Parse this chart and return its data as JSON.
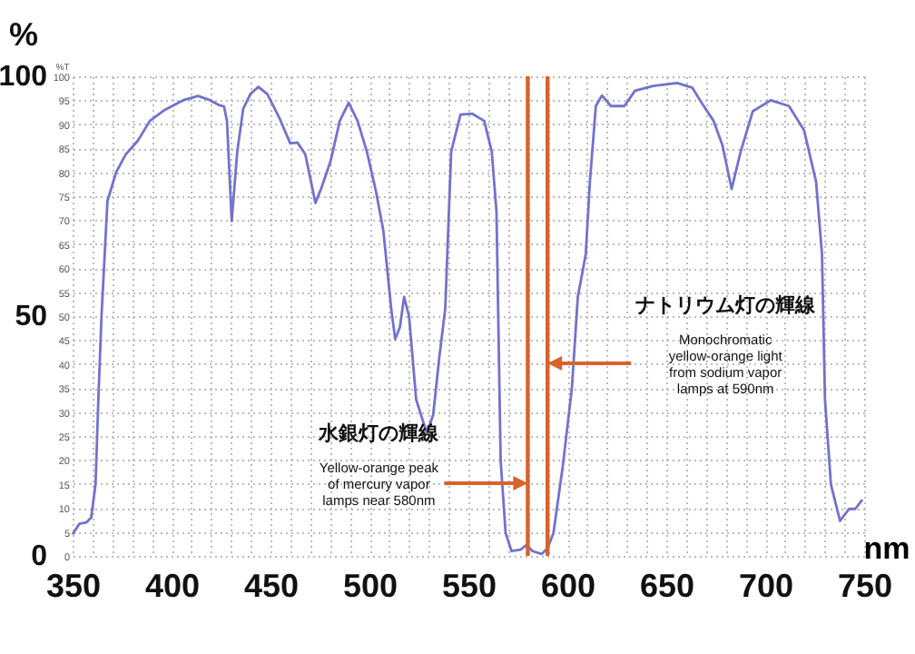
{
  "chart_data": {
    "type": "line",
    "xlabel": "nm",
    "ylabel": "%T",
    "y2label": "%",
    "xlim": [
      350,
      750
    ],
    "ylim": [
      0,
      100
    ],
    "y2lim": [
      0,
      100
    ],
    "xticks": [
      350,
      {
        "value": 360,
        "label": null
      },
      {
        "value": 370,
        "label": null
      },
      {
        "value": 380,
        "label": null
      },
      {
        "value": 390,
        "label": null
      },
      400,
      {
        "value": 410,
        "label": null
      },
      {
        "value": 420,
        "label": null
      },
      {
        "value": 430,
        "label": null
      },
      {
        "value": 440,
        "label": null
      },
      450,
      {
        "value": 460,
        "label": null
      },
      {
        "value": 470,
        "label": null
      },
      {
        "value": 480,
        "label": null
      },
      {
        "value": 490,
        "label": null
      },
      500,
      {
        "value": 510,
        "label": null
      },
      {
        "value": 520,
        "label": null
      },
      {
        "value": 530,
        "label": null
      },
      {
        "value": 540,
        "label": null
      },
      550,
      {
        "value": 560,
        "label": null
      },
      {
        "value": 570,
        "label": null
      },
      {
        "value": 580,
        "label": null
      },
      {
        "value": 590,
        "label": null
      },
      600,
      {
        "value": 610,
        "label": null
      },
      {
        "value": 620,
        "label": null
      },
      {
        "value": 630,
        "label": null
      },
      {
        "value": 640,
        "label": null
      },
      650,
      {
        "value": 660,
        "label": null
      },
      {
        "value": 670,
        "label": null
      },
      {
        "value": 680,
        "label": null
      },
      {
        "value": 690,
        "label": null
      },
      700,
      {
        "value": 710,
        "label": null
      },
      {
        "value": 720,
        "label": null
      },
      {
        "value": 730,
        "label": null
      },
      {
        "value": 740,
        "label": null
      },
      750
    ],
    "yticks": [
      0,
      5,
      10,
      15,
      20,
      25,
      30,
      35,
      40,
      45,
      50,
      55,
      60,
      65,
      70,
      75,
      80,
      85,
      90,
      95,
      100
    ],
    "y2ticks": [
      0,
      50,
      100
    ],
    "grid": true,
    "series": [
      {
        "color": "#7272cf",
        "x": [
          350,
          353.4,
          357,
          359.4,
          361.6,
          363,
          364.6,
          367.6,
          372,
          376.8,
          383,
          389,
          396.6,
          405.8,
          413.4,
          419.5,
          424,
          426.5,
          428,
          430.4,
          433.2,
          436.2,
          439.8,
          443.9,
          448.4,
          454.5,
          460,
          463.6,
          467.6,
          472.7,
          475.8,
          480.4,
          485,
          489.5,
          494,
          498.7,
          503.3,
          507,
          511,
          513,
          515.4,
          517.5,
          520,
          523.6,
          529,
          532.2,
          535.3,
          538.3,
          541.3,
          546,
          552,
          558,
          561.8,
          564.2,
          566.3,
          568.8,
          571.8,
          576.4,
          579.4,
          582.4,
          587,
          590,
          593,
          597.7,
          602.3,
          605.3,
          609.3,
          611.4,
          614.4,
          617.5,
          622,
          628.8,
          634.2,
          643.4,
          655.5,
          663.2,
          667.8,
          673.9,
          678.4,
          683,
          687.6,
          693.7,
          702.8,
          712,
          719.6,
          725.7,
          728.7,
          730.2,
          733.2,
          737.8,
          742.4,
          745.5,
          749.1
        ],
        "values": [
          4.5,
          6.7,
          7,
          8,
          15,
          32.6,
          50,
          74,
          80,
          83.7,
          86.6,
          90.7,
          93,
          95,
          95.9,
          95,
          94,
          93.7,
          90.7,
          69.8,
          84.3,
          93.2,
          96.3,
          97.8,
          96.3,
          91.3,
          86,
          86.2,
          83.7,
          73.6,
          76.8,
          82.4,
          90.7,
          94.5,
          90.7,
          84.3,
          76,
          67.9,
          51.5,
          45.2,
          47.7,
          54,
          50,
          32.6,
          25.6,
          29.4,
          41.4,
          51.5,
          84.3,
          92,
          92.2,
          90.7,
          84.3,
          71.7,
          19.9,
          4.8,
          1,
          1.3,
          2.3,
          1,
          0.4,
          1.6,
          4.8,
          18.7,
          35,
          54,
          62.9,
          78,
          93.8,
          96,
          93.8,
          93.8,
          97,
          98,
          98.6,
          97.6,
          94.5,
          90.7,
          85.6,
          76.5,
          84.3,
          92.7,
          95,
          93.8,
          88.8,
          78,
          62.9,
          32.6,
          14.9,
          7.3,
          9.8,
          9.8,
          11.7
        ]
      }
    ],
    "ref_lines": [
      {
        "axis": "x",
        "value": 580,
        "color": "#d9622b"
      },
      {
        "axis": "x",
        "value": 590,
        "color": "#d9622b"
      }
    ],
    "annotations": [
      "水銀灯の輝線\nYellow-orange peak\nof mercury vapor\nlamps near 580nm",
      "ナトリウム灯の輝線\nMonochromatic\nyellow-orange light\nfrom sodium vapor\nlamps at 590nm"
    ]
  }
}
